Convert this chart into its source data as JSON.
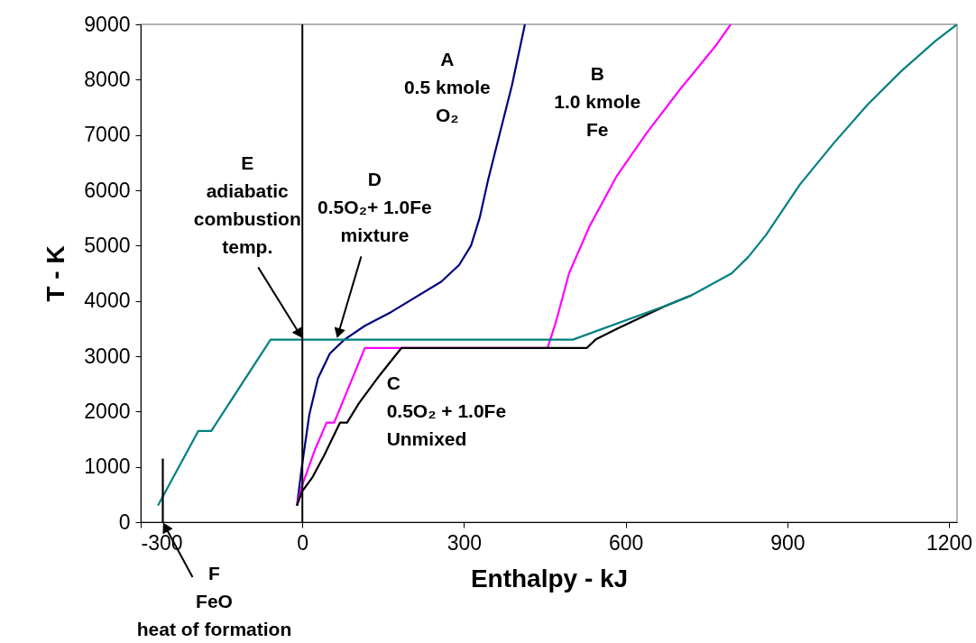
{
  "chart_data": {
    "type": "line",
    "xlabel": "Enthalpy - kJ",
    "ylabel": "T - K",
    "xlim": [
      -300,
      1215
    ],
    "xticks": [
      -300,
      0,
      300,
      600,
      900,
      1200
    ],
    "ylim": [
      0,
      9000
    ],
    "yticks": [
      0,
      1000,
      2000,
      3000,
      4000,
      5000,
      6000,
      7000,
      8000,
      9000
    ],
    "grid": false,
    "marker": "none",
    "line_style": "solid",
    "series": [
      {
        "color": "#000080",
        "x": [
          -10,
          -1,
          13,
          29,
          51,
          78,
          116,
          165,
          258,
          291,
          313,
          329,
          345,
          367,
          389,
          413
        ],
        "values": [
          300,
          1000,
          1950,
          2600,
          3050,
          3300,
          3550,
          3800,
          4350,
          4650,
          5000,
          5500,
          6200,
          7050,
          7900,
          9000
        ]
      },
      {
        "color": "#ff00ff",
        "x": [
          -10,
          -1,
          23,
          45,
          59,
          116,
          455,
          470,
          495,
          533,
          583,
          640,
          703,
          766,
          795
        ],
        "values": [
          300,
          650,
          1300,
          1800,
          1800,
          3150,
          3150,
          3600,
          4500,
          5350,
          6250,
          7050,
          7850,
          8600,
          9000
        ]
      },
      {
        "color": "#000000",
        "x": [
          -10,
          -1,
          18,
          40,
          70,
          83,
          105,
          143,
          184,
          528,
          544,
          585,
          672,
          722
        ],
        "values": [
          300,
          550,
          800,
          1200,
          1800,
          1800,
          2150,
          2650,
          3150,
          3150,
          3300,
          3500,
          3900,
          4100
        ]
      },
      {
        "color": "#008080",
        "x": [
          -268,
          -193,
          -169,
          -59,
          502,
          671,
          722,
          797,
          828,
          861,
          923,
          986,
          1049,
          1111,
          1175,
          1215
        ],
        "values": [
          300,
          1650,
          1650,
          3300,
          3300,
          3900,
          4100,
          4500,
          4800,
          5200,
          6100,
          6850,
          7550,
          8150,
          8700,
          9000
        ]
      },
      {
        "color": "#000000",
        "x": [
          -259,
          -259
        ],
        "values": [
          0,
          1150
        ]
      }
    ],
    "ref_lines": [
      {
        "axis": "x",
        "value": 0,
        "color": "#000000"
      }
    ],
    "annotations": [
      {
        "text": "A\n0.5 kmole\nO₂",
        "x": 381,
        "y": 7600
      },
      {
        "text": "B\n1.0 kmole\nFe",
        "x": 683,
        "y": 7600
      },
      {
        "text": "C\n0.5O₂ + 1.0Fe\nUnmixed",
        "x": 143,
        "y": 2647
      },
      {
        "text": "D\n0.5O₂+ 1.0Fe\nmixture",
        "x": 64,
        "y": 3320
      },
      {
        "text": "E\nadiabatic\ncombustion\ntemp.",
        "x": 0,
        "y": 3320
      },
      {
        "text": "F\nFeO\nheat of formation",
        "x": -259,
        "y": 0
      }
    ]
  }
}
